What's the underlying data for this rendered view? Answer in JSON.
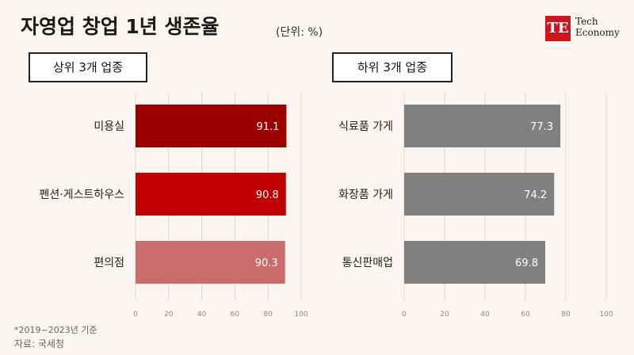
{
  "title": "자영업 창업 1년 생존율",
  "unit": "(단위: %)",
  "logo": {
    "mark": "TE",
    "line1": "Tech",
    "line2": "Economy"
  },
  "footnote": {
    "period": "*2019~2023년 기준",
    "source": "자료: 국세청"
  },
  "chart_data": [
    {
      "type": "bar",
      "orientation": "horizontal",
      "title": "상위 3개 업종",
      "categories": [
        "미용실",
        "펜션·게스트하우스",
        "편의점"
      ],
      "values": [
        91.1,
        90.8,
        90.3
      ],
      "colors": [
        "#9a0000",
        "#c00000",
        "#cc6b6b"
      ],
      "xlim": [
        0,
        100
      ],
      "xticks": [
        "0",
        "20",
        "40",
        "60",
        "80",
        "100"
      ],
      "grid": true
    },
    {
      "type": "bar",
      "orientation": "horizontal",
      "title": "하위 3개 업종",
      "categories": [
        "식료품 가게",
        "화장품 가게",
        "통신판매업"
      ],
      "values": [
        77.3,
        74.2,
        69.8
      ],
      "colors": [
        "#808080",
        "#808080",
        "#808080"
      ],
      "xlim": [
        0,
        100
      ],
      "xticks": [
        "0",
        "20",
        "40",
        "60",
        "80",
        "100"
      ],
      "grid": true
    }
  ]
}
